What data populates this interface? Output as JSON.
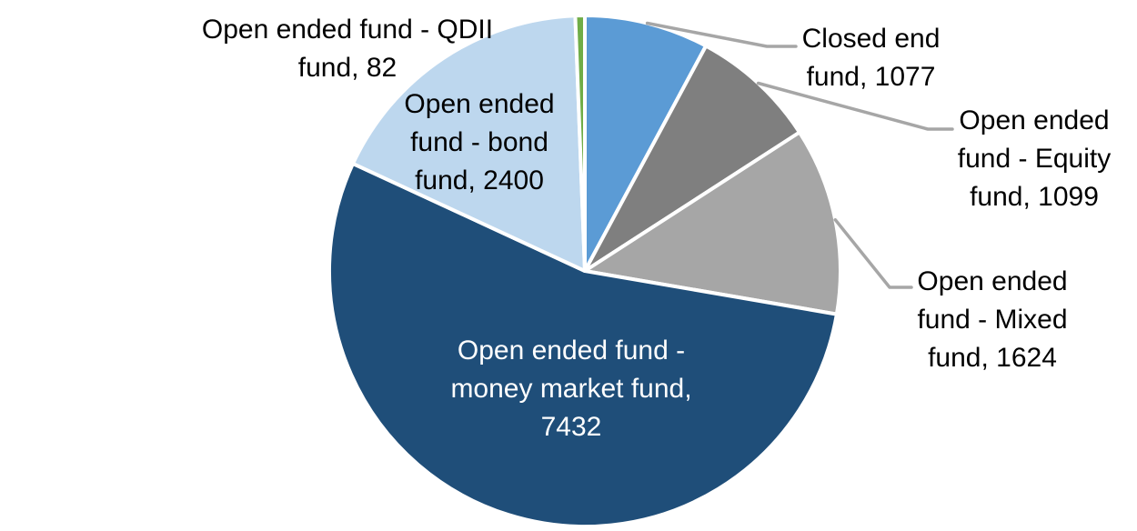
{
  "chart_data": {
    "type": "pie",
    "title": "",
    "legend": "none",
    "start_angle_deg": 0,
    "direction": "clockwise",
    "label_format": "category name, value",
    "series": [
      {
        "name": "Closed end fund",
        "slug": "closed-end-fund",
        "value": 1077,
        "color": "#5B9BD5"
      },
      {
        "name": "Open ended fund - Equity fund",
        "slug": "open-ended-equity-fund",
        "value": 1099,
        "color": "#7F7F7F"
      },
      {
        "name": "Open ended fund - Mixed fund",
        "slug": "open-ended-mixed-fund",
        "value": 1624,
        "color": "#A6A6A6"
      },
      {
        "name": "Open ended fund - money market fund",
        "slug": "open-ended-money-market-fund",
        "value": 7432,
        "color": "#1F4E79"
      },
      {
        "name": "Open ended fund - bond fund",
        "slug": "open-ended-bond-fund",
        "value": 2400,
        "color": "#BDD7EE"
      },
      {
        "name": "Open ended fund - QDII fund",
        "slug": "open-ended-qdii-fund",
        "value": 82,
        "color": "#70AD47"
      }
    ]
  },
  "labels": {
    "qdii": {
      "lines": [
        "Open ended fund - QDII",
        "fund, 82"
      ]
    },
    "bond": {
      "lines": [
        "Open ended",
        "fund - bond",
        "fund, 2400"
      ]
    },
    "closed_end": {
      "lines": [
        "Closed end",
        "fund, 1077"
      ]
    },
    "equity": {
      "lines": [
        "Open ended",
        "fund - Equity",
        "fund, 1099"
      ]
    },
    "mixed": {
      "lines": [
        "Open ended",
        "fund - Mixed",
        "fund, 1624"
      ]
    },
    "money_market": {
      "lines": [
        "Open ended fund -",
        "money market fund,",
        "7432"
      ]
    }
  },
  "colors": {
    "background": "#FFFFFF",
    "slice_border": "#FFFFFF",
    "leader_line": "#A6A6A6",
    "label_text": "#000000",
    "inside_label_text": "#FFFFFF"
  }
}
